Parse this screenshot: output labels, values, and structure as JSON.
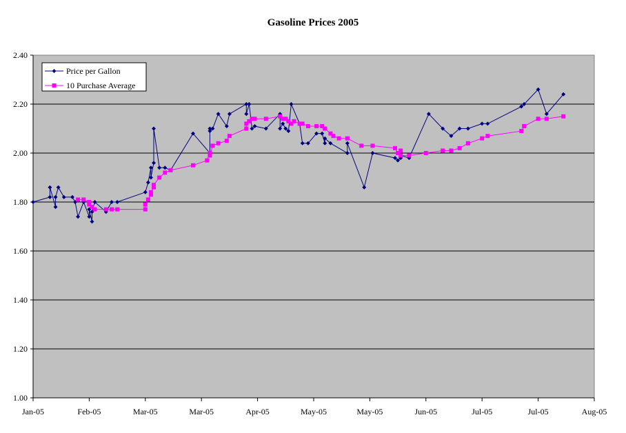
{
  "chart_data": {
    "type": "line",
    "title": "Gasoline Prices 2005",
    "xlabel": "",
    "ylabel": "",
    "ylim": [
      1.0,
      2.4
    ],
    "yticks": [
      "1.00",
      "1.20",
      "1.40",
      "1.60",
      "1.80",
      "2.00",
      "2.20",
      "2.40"
    ],
    "xlim": [
      0,
      200
    ],
    "xticks": [
      {
        "v": 0,
        "label": "Jan-05"
      },
      {
        "v": 20,
        "label": "Feb-05"
      },
      {
        "v": 40,
        "label": "Mar-05"
      },
      {
        "v": 60,
        "label": "Mar-05"
      },
      {
        "v": 80,
        "label": "Apr-05"
      },
      {
        "v": 100,
        "label": "May-05"
      },
      {
        "v": 120,
        "label": "May-05"
      },
      {
        "v": 140,
        "label": "Jun-05"
      },
      {
        "v": 160,
        "label": "Jul-05"
      },
      {
        "v": 180,
        "label": "Jul-05"
      },
      {
        "v": 200,
        "label": "Aug-05"
      }
    ],
    "grid": true,
    "legend_position": "top-left",
    "series": [
      {
        "name": "Price per Gallon",
        "color": "#000080",
        "marker": "diamond",
        "points": [
          [
            0,
            1.8
          ],
          [
            6,
            1.82
          ],
          [
            6,
            1.86
          ],
          [
            8,
            1.78
          ],
          [
            8,
            1.82
          ],
          [
            9,
            1.86
          ],
          [
            11,
            1.82
          ],
          [
            14,
            1.82
          ],
          [
            15,
            1.8
          ],
          [
            16,
            1.74
          ],
          [
            18,
            1.8
          ],
          [
            20,
            1.74
          ],
          [
            20,
            1.77
          ],
          [
            21,
            1.72
          ],
          [
            21,
            1.76
          ],
          [
            22,
            1.8
          ],
          [
            26,
            1.76
          ],
          [
            28,
            1.8
          ],
          [
            30,
            1.8
          ],
          [
            40,
            1.84
          ],
          [
            41,
            1.88
          ],
          [
            42,
            1.94
          ],
          [
            42,
            1.9
          ],
          [
            43,
            1.96
          ],
          [
            43,
            2.1
          ],
          [
            45,
            1.94
          ],
          [
            47,
            1.94
          ],
          [
            49,
            1.93
          ],
          [
            57,
            2.08
          ],
          [
            63,
            2.0
          ],
          [
            63,
            2.1
          ],
          [
            63,
            2.09
          ],
          [
            64,
            2.1
          ],
          [
            66,
            2.16
          ],
          [
            69,
            2.11
          ],
          [
            70,
            2.16
          ],
          [
            76,
            2.2
          ],
          [
            76,
            2.16
          ],
          [
            77,
            2.2
          ],
          [
            78,
            2.1
          ],
          [
            79,
            2.11
          ],
          [
            83,
            2.1
          ],
          [
            88,
            2.16
          ],
          [
            88,
            2.1
          ],
          [
            89,
            2.12
          ],
          [
            90,
            2.1
          ],
          [
            91,
            2.09
          ],
          [
            92,
            2.2
          ],
          [
            95,
            2.12
          ],
          [
            96,
            2.04
          ],
          [
            98,
            2.04
          ],
          [
            101,
            2.08
          ],
          [
            103,
            2.08
          ],
          [
            104,
            2.04
          ],
          [
            104,
            2.06
          ],
          [
            106,
            2.04
          ],
          [
            112,
            2.0
          ],
          [
            112,
            2.04
          ],
          [
            118,
            1.86
          ],
          [
            121,
            2.0
          ],
          [
            129,
            1.98
          ],
          [
            130,
            1.97
          ],
          [
            131,
            1.98
          ],
          [
            131,
            1.99
          ],
          [
            134,
            1.98
          ],
          [
            141,
            2.16
          ],
          [
            146,
            2.1
          ],
          [
            149,
            2.07
          ],
          [
            152,
            2.1
          ],
          [
            155,
            2.1
          ],
          [
            160,
            2.12
          ],
          [
            162,
            2.12
          ],
          [
            174,
            2.19
          ],
          [
            175,
            2.2
          ],
          [
            180,
            2.26
          ],
          [
            183,
            2.16
          ],
          [
            189,
            2.24
          ]
        ]
      },
      {
        "name": "10 Purchase Average",
        "color": "#FF00FF",
        "marker": "square",
        "points": [
          [
            16,
            1.81
          ],
          [
            18,
            1.81
          ],
          [
            20,
            1.8
          ],
          [
            20,
            1.79
          ],
          [
            21,
            1.78
          ],
          [
            22,
            1.77
          ],
          [
            26,
            1.77
          ],
          [
            28,
            1.77
          ],
          [
            30,
            1.77
          ],
          [
            40,
            1.77
          ],
          [
            40,
            1.79
          ],
          [
            41,
            1.81
          ],
          [
            42,
            1.83
          ],
          [
            42,
            1.84
          ],
          [
            43,
            1.86
          ],
          [
            43,
            1.87
          ],
          [
            45,
            1.9
          ],
          [
            47,
            1.92
          ],
          [
            49,
            1.93
          ],
          [
            57,
            1.95
          ],
          [
            62,
            1.97
          ],
          [
            63,
            2.0
          ],
          [
            63,
            1.99
          ],
          [
            64,
            2.03
          ],
          [
            66,
            2.04
          ],
          [
            69,
            2.05
          ],
          [
            70,
            2.07
          ],
          [
            76,
            2.1
          ],
          [
            76,
            2.12
          ],
          [
            77,
            2.13
          ],
          [
            78,
            2.14
          ],
          [
            79,
            2.14
          ],
          [
            83,
            2.14
          ],
          [
            88,
            2.15
          ],
          [
            89,
            2.14
          ],
          [
            90,
            2.14
          ],
          [
            91,
            2.13
          ],
          [
            92,
            2.12
          ],
          [
            93,
            2.13
          ],
          [
            95,
            2.12
          ],
          [
            96,
            2.12
          ],
          [
            98,
            2.11
          ],
          [
            101,
            2.11
          ],
          [
            103,
            2.11
          ],
          [
            104,
            2.1
          ],
          [
            104,
            2.1
          ],
          [
            106,
            2.08
          ],
          [
            107,
            2.07
          ],
          [
            109,
            2.06
          ],
          [
            112,
            2.06
          ],
          [
            117,
            2.03
          ],
          [
            121,
            2.03
          ],
          [
            129,
            2.02
          ],
          [
            130,
            2.0
          ],
          [
            131,
            2.01
          ],
          [
            131,
            1.99
          ],
          [
            134,
            1.99
          ],
          [
            140,
            2.0
          ],
          [
            146,
            2.01
          ],
          [
            149,
            2.01
          ],
          [
            152,
            2.02
          ],
          [
            155,
            2.04
          ],
          [
            160,
            2.06
          ],
          [
            162,
            2.07
          ],
          [
            174,
            2.09
          ],
          [
            175,
            2.11
          ],
          [
            180,
            2.14
          ],
          [
            183,
            2.14
          ],
          [
            189,
            2.15
          ]
        ]
      }
    ]
  }
}
